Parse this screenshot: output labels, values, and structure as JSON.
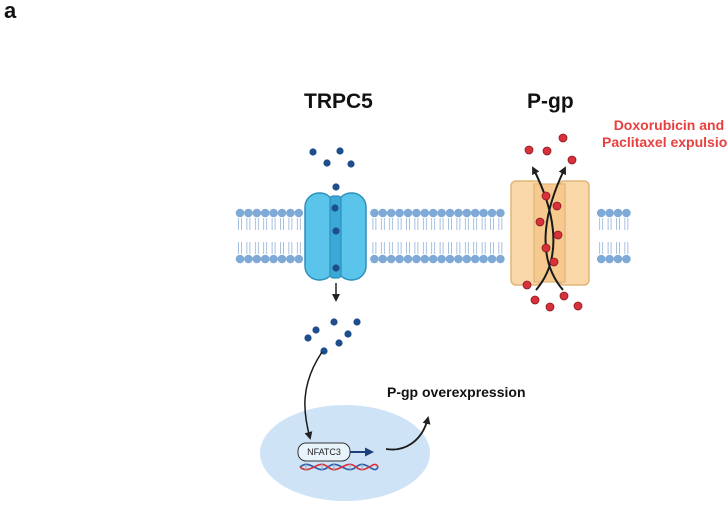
{
  "figure": {
    "panel_letter": "a",
    "channel_label": "TRPC5",
    "transporter_label": "P-gp",
    "expulsion_lines": [
      "Doxorubicin and",
      "Paclitaxel expulsion"
    ],
    "outcome_label": "P-gp overexpression",
    "transcription_factor": "NFATC3"
  },
  "colors": {
    "membrane_head": "#7fa9d6",
    "membrane_tail": "#8fb2d8",
    "channel_fill": "#5bc4ea",
    "channel_stroke": "#2f8fb8",
    "ion": "#1f4e8c",
    "pgp_fill": "#f9d7a8",
    "pgp_stroke": "#e0b57a",
    "drug": "#d9313b",
    "drug_label": "#e8403e",
    "nucleus": "#cfe3f7"
  },
  "icons": {
    "ion": "ion-dot",
    "drug": "drug-dot",
    "dna": "dna-helix-icon"
  }
}
